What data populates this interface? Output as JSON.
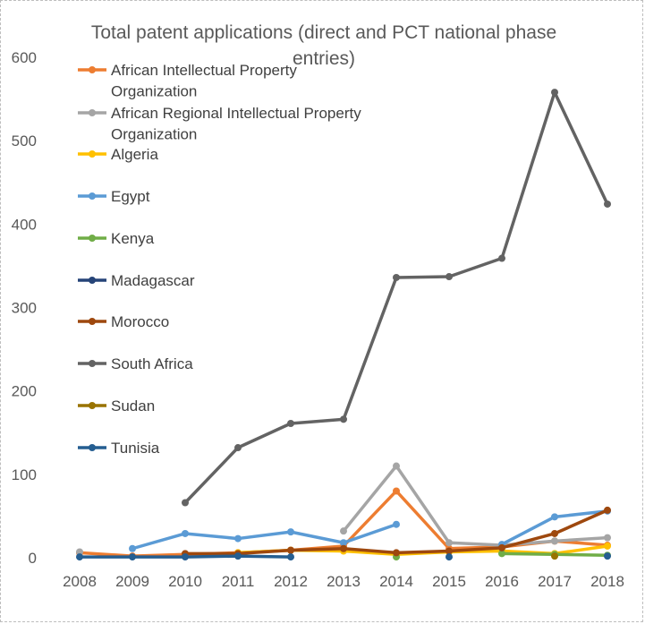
{
  "chart_data": {
    "type": "line",
    "title": "Total patent applications (direct and PCT national phase entries)",
    "title_lines": [
      "Total patent applications (direct and PCT national phase",
      "entries)"
    ],
    "xlabel": "",
    "ylabel": "",
    "categories": [
      "2008",
      "2009",
      "2010",
      "2011",
      "2012",
      "2013",
      "2014",
      "2015",
      "2016",
      "2017",
      "2018"
    ],
    "ylim": [
      0,
      600
    ],
    "yticks": [
      0,
      100,
      200,
      300,
      400,
      500,
      600
    ],
    "grid": false,
    "legend_position": "upper-left",
    "series": [
      {
        "name": "African Intellectual Property Organization",
        "legend_lines": [
          "African Intellectual Property",
          "Organization"
        ],
        "color": "#ED7D31",
        "values": [
          6,
          2,
          4,
          6,
          9,
          14,
          80,
          11,
          13,
          20,
          15
        ]
      },
      {
        "name": "African Regional Intellectual Property Organization",
        "legend_lines": [
          "African Regional Intellectual Property",
          "Organization"
        ],
        "color": "#A5A5A5",
        "values": [
          7,
          null,
          null,
          null,
          null,
          32,
          110,
          18,
          15,
          20,
          24
        ]
      },
      {
        "name": "Algeria",
        "legend_lines": [
          "Algeria"
        ],
        "color": "#FFC000",
        "values": [
          null,
          null,
          null,
          6,
          9,
          8,
          4,
          7,
          8,
          5,
          14
        ]
      },
      {
        "name": "Egypt",
        "legend_lines": [
          "Egypt"
        ],
        "color": "#5B9BD5",
        "values": [
          null,
          11,
          29,
          23,
          31,
          18,
          40,
          null,
          16,
          49,
          56
        ]
      },
      {
        "name": "Kenya",
        "legend_lines": [
          "Kenya"
        ],
        "color": "#70AD47",
        "values": [
          null,
          null,
          null,
          null,
          null,
          null,
          1,
          null,
          5,
          4,
          3
        ]
      },
      {
        "name": "Madagascar",
        "legend_lines": [
          "Madagascar"
        ],
        "color": "#264478",
        "values": [
          null,
          null,
          null,
          null,
          null,
          null,
          null,
          null,
          null,
          null,
          null
        ]
      },
      {
        "name": "Morocco",
        "legend_lines": [
          "Morocco"
        ],
        "color": "#9E480E",
        "values": [
          null,
          null,
          5,
          5,
          9,
          11,
          6,
          8,
          12,
          29,
          57
        ]
      },
      {
        "name": "South Africa",
        "legend_lines": [
          "South Africa"
        ],
        "color": "#636363",
        "values": [
          null,
          null,
          66,
          132,
          161,
          166,
          336,
          337,
          359,
          558,
          424
        ]
      },
      {
        "name": "Sudan",
        "legend_lines": [
          "Sudan"
        ],
        "color": "#997300",
        "values": [
          null,
          null,
          null,
          null,
          null,
          null,
          null,
          null,
          null,
          2,
          null
        ]
      },
      {
        "name": "Tunisia",
        "legend_lines": [
          "Tunisia"
        ],
        "color": "#255E91",
        "values": [
          1,
          1,
          1,
          2,
          1,
          null,
          null,
          1,
          null,
          null,
          2
        ]
      }
    ]
  }
}
